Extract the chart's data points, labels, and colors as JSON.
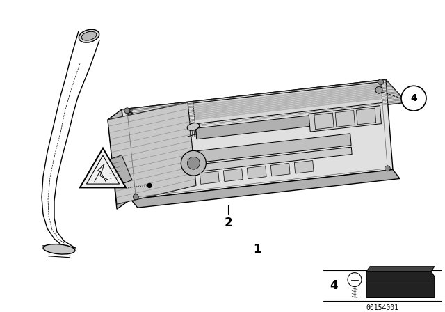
{
  "bg_color": "#ffffff",
  "line_color": "#000000",
  "diagram_id": "00154001",
  "figsize": [
    6.4,
    4.48
  ],
  "dpi": 100,
  "radio_color": "#e8e8e8",
  "radio_dark": "#aaaaaa",
  "radio_shadow": "#cccccc"
}
